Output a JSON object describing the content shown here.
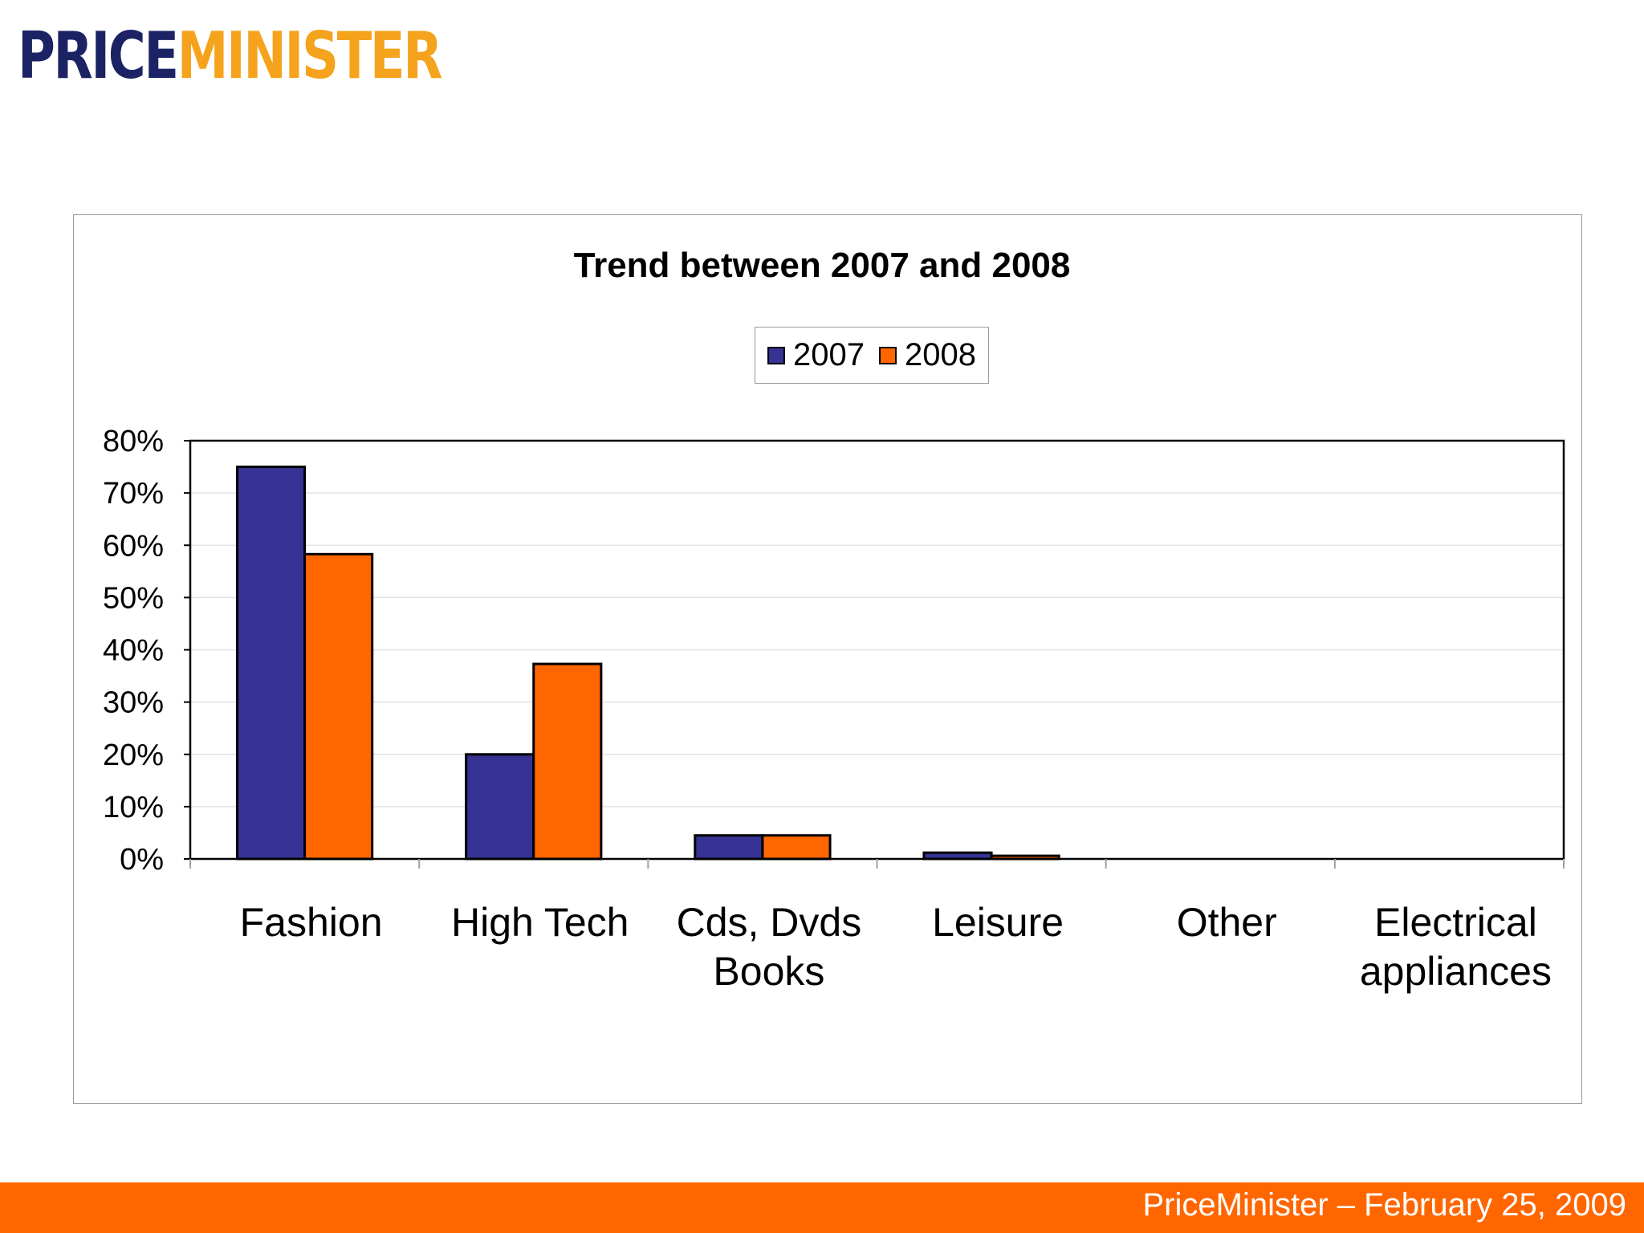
{
  "logo": {
    "part1": "PRICE",
    "part2": "MINISTER"
  },
  "footer": {
    "text": "PriceMinister – February 25, 2009"
  },
  "chart_data": {
    "type": "bar",
    "title": "Trend between 2007 and 2008",
    "categories": [
      [
        "Fashion"
      ],
      [
        "High Tech"
      ],
      [
        "Cds, Dvds",
        "Books"
      ],
      [
        "Leisure"
      ],
      [
        "Other"
      ],
      [
        "Electrical",
        "appliances"
      ]
    ],
    "series": [
      {
        "name": "2007",
        "color": "#363394",
        "values": [
          75,
          20,
          4.5,
          1.2,
          0,
          0
        ]
      },
      {
        "name": "2008",
        "color": "#ff6600",
        "values": [
          58.3,
          37.3,
          4.5,
          0.6,
          0,
          0
        ]
      }
    ],
    "ylim": [
      0,
      80
    ],
    "yticks": [
      "0%",
      "10%",
      "20%",
      "30%",
      "40%",
      "50%",
      "60%",
      "70%",
      "80%"
    ],
    "xlabel": "",
    "ylabel": "",
    "grid": true,
    "legend_position": "top-center"
  }
}
